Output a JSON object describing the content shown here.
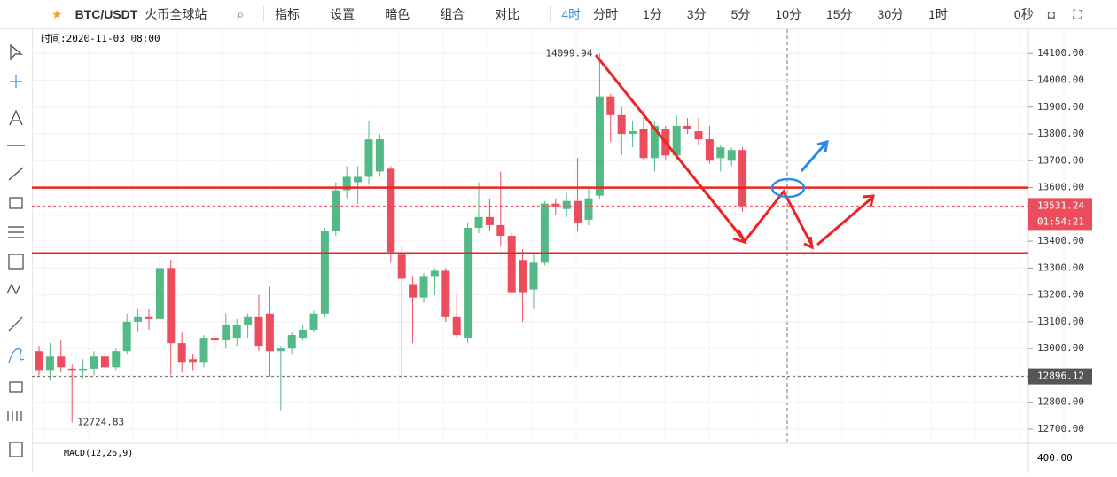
{
  "toolbar": {
    "symbol": "BTC/USDT",
    "exchange": "火币全球站",
    "buttons": [
      "指标",
      "设置",
      "暗色",
      "组合",
      "对比"
    ],
    "interval": "4时",
    "intervals": [
      "分时",
      "1分",
      "3分",
      "5分",
      "10分",
      "15分",
      "30分",
      "1时"
    ],
    "timer": "0秒"
  },
  "hover_time": "时间:2020-11-03 08:00",
  "chart_data": {
    "type": "candlestick",
    "up_color": "#53b987",
    "down_color": "#eb4d5c",
    "ohlc": [
      [
        12990,
        13010,
        12900,
        12920
      ],
      [
        12920,
        13020,
        12880,
        12970
      ],
      [
        12970,
        13030,
        12910,
        12930
      ],
      [
        12925,
        12940,
        12724.83,
        12920
      ],
      [
        12920,
        12960,
        12890,
        12925
      ],
      [
        12925,
        12990,
        12900,
        12970
      ],
      [
        12970,
        12985,
        12920,
        12930
      ],
      [
        12930,
        13000,
        12920,
        12990
      ],
      [
        12990,
        13130,
        12980,
        13100
      ],
      [
        13100,
        13150,
        13060,
        13120
      ],
      [
        13120,
        13150,
        13070,
        13110
      ],
      [
        13110,
        13340,
        13100,
        13300
      ],
      [
        13300,
        13330,
        12900,
        13020
      ],
      [
        13020,
        13060,
        12910,
        12950
      ],
      [
        12960,
        12980,
        12920,
        12950
      ],
      [
        12950,
        13050,
        12930,
        13040
      ],
      [
        13040,
        13060,
        12980,
        13030
      ],
      [
        13030,
        13130,
        13000,
        13090
      ],
      [
        13040,
        13110,
        13010,
        13090
      ],
      [
        13090,
        13130,
        13040,
        13120
      ],
      [
        13120,
        13200,
        12990,
        13010
      ],
      [
        13130,
        13230,
        12896,
        12990
      ],
      [
        12990,
        13010,
        12770,
        13000
      ],
      [
        13000,
        13060,
        12980,
        13050
      ],
      [
        13040,
        13090,
        13030,
        13070
      ],
      [
        13070,
        13140,
        13060,
        13130
      ],
      [
        13130,
        13450,
        13120,
        13440
      ],
      [
        13440,
        13620,
        13420,
        13590
      ],
      [
        13590,
        13680,
        13560,
        13640
      ],
      [
        13620,
        13680,
        13540,
        13640
      ],
      [
        13640,
        13850,
        13610,
        13780
      ],
      [
        13660,
        13800,
        13640,
        13780
      ],
      [
        13670,
        13680,
        13320,
        13360
      ],
      [
        13350,
        13380,
        12896,
        13260
      ],
      [
        13240,
        13270,
        13020,
        13190
      ],
      [
        13190,
        13280,
        13170,
        13270
      ],
      [
        13270,
        13300,
        13200,
        13290
      ],
      [
        13290,
        13300,
        13100,
        13120
      ],
      [
        13120,
        13200,
        13040,
        13050
      ],
      [
        13040,
        13470,
        13020,
        13450
      ],
      [
        13450,
        13620,
        13430,
        13490
      ],
      [
        13490,
        13560,
        13440,
        13460
      ],
      [
        13460,
        13660,
        13380,
        13420
      ],
      [
        13420,
        13430,
        13210,
        13210
      ],
      [
        13330,
        13370,
        13100,
        13210
      ],
      [
        13220,
        13350,
        13150,
        13320
      ],
      [
        13320,
        13550,
        13310,
        13540
      ],
      [
        13540,
        13560,
        13500,
        13530
      ],
      [
        13520,
        13580,
        13490,
        13550
      ],
      [
        13550,
        13710,
        13440,
        13470
      ],
      [
        13480,
        13600,
        13460,
        13560
      ],
      [
        13570,
        14099.94,
        13560,
        13940
      ],
      [
        13940,
        13950,
        13770,
        13870
      ],
      [
        13870,
        13900,
        13720,
        13800
      ],
      [
        13800,
        13850,
        13750,
        13810
      ],
      [
        13820,
        13890,
        13700,
        13710
      ],
      [
        13710,
        13850,
        13660,
        13830
      ],
      [
        13820,
        13830,
        13700,
        13720
      ],
      [
        13720,
        13870,
        13700,
        13830
      ],
      [
        13830,
        13860,
        13800,
        13820
      ],
      [
        13810,
        13860,
        13760,
        13780
      ],
      [
        13780,
        13830,
        13690,
        13700
      ],
      [
        13710,
        13760,
        13660,
        13750
      ],
      [
        13700,
        13750,
        13680,
        13740
      ],
      [
        13740,
        13750,
        13510,
        13531.24
      ]
    ],
    "ylim": [
      12647,
      14190
    ],
    "yticks": [
      {
        "value": 14100,
        "label": "14100.00"
      },
      {
        "value": 14000,
        "label": "14000.00"
      },
      {
        "value": 13900,
        "label": "13900.00"
      },
      {
        "value": 13800,
        "label": "13800.00"
      },
      {
        "value": 13700,
        "label": "13700.00"
      },
      {
        "value": 13600,
        "label": "13600.00"
      },
      {
        "value": 13500,
        "label": "13500.00"
      },
      {
        "value": 13400,
        "label": "13400.00"
      },
      {
        "value": 13300,
        "label": "13300.00"
      },
      {
        "value": 13200,
        "label": "13200.00"
      },
      {
        "value": 13100,
        "label": "13100.00"
      },
      {
        "value": 13000,
        "label": "13000.00"
      },
      {
        "value": 12900,
        "label": "12900.00"
      },
      {
        "value": 12800,
        "label": "12800.00"
      },
      {
        "value": 12700,
        "label": "12700.00"
      }
    ],
    "countdown": "01:54:21",
    "low_line": 12896.12,
    "drawn_lines": [
      13600,
      13355
    ],
    "line_color": "#ee2222"
  },
  "macd": {
    "label": "MACD(12,26,9)",
    "ytick": {
      "value": 400,
      "label": "400.00"
    }
  }
}
